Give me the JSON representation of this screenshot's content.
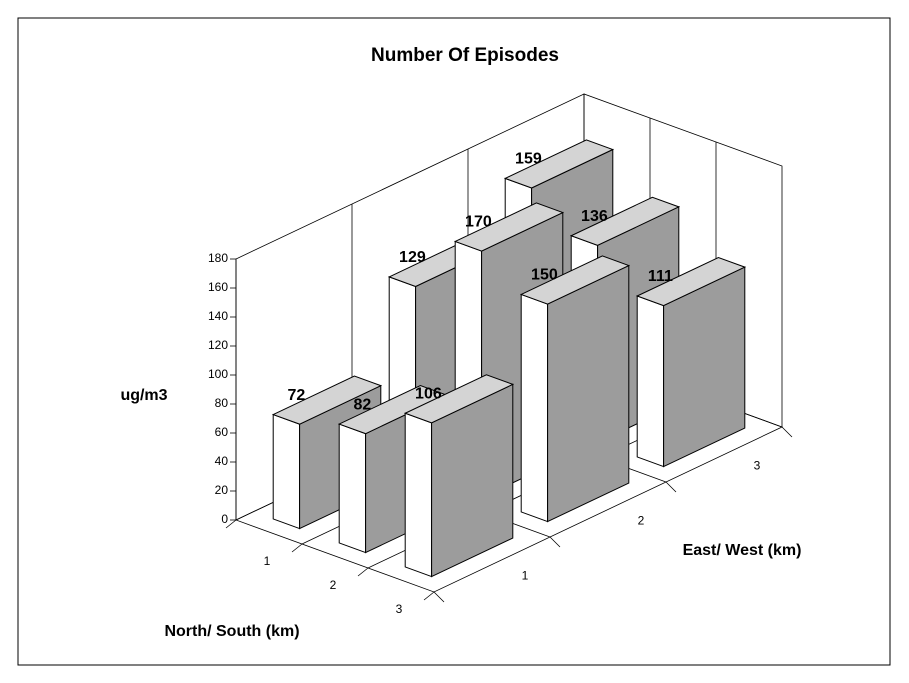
{
  "chart_data": {
    "type": "bar3d",
    "title": "Number Of Episodes",
    "ylabel": "ug/m3",
    "xlabel": "East/ West (km)",
    "zlabel": "North/ South (km)",
    "categories": [
      "1",
      "2",
      "3"
    ],
    "series": [
      {
        "name": "1",
        "values": [
          72,
          129,
          159
        ]
      },
      {
        "name": "2",
        "values": [
          82,
          170,
          136
        ]
      },
      {
        "name": "3",
        "values": [
          106,
          150,
          111
        ]
      }
    ],
    "color": "#9c9c9c",
    "ylim": [
      0,
      180
    ],
    "yticks": [
      0,
      20,
      40,
      60,
      80,
      100,
      120,
      140,
      160,
      180
    ]
  }
}
